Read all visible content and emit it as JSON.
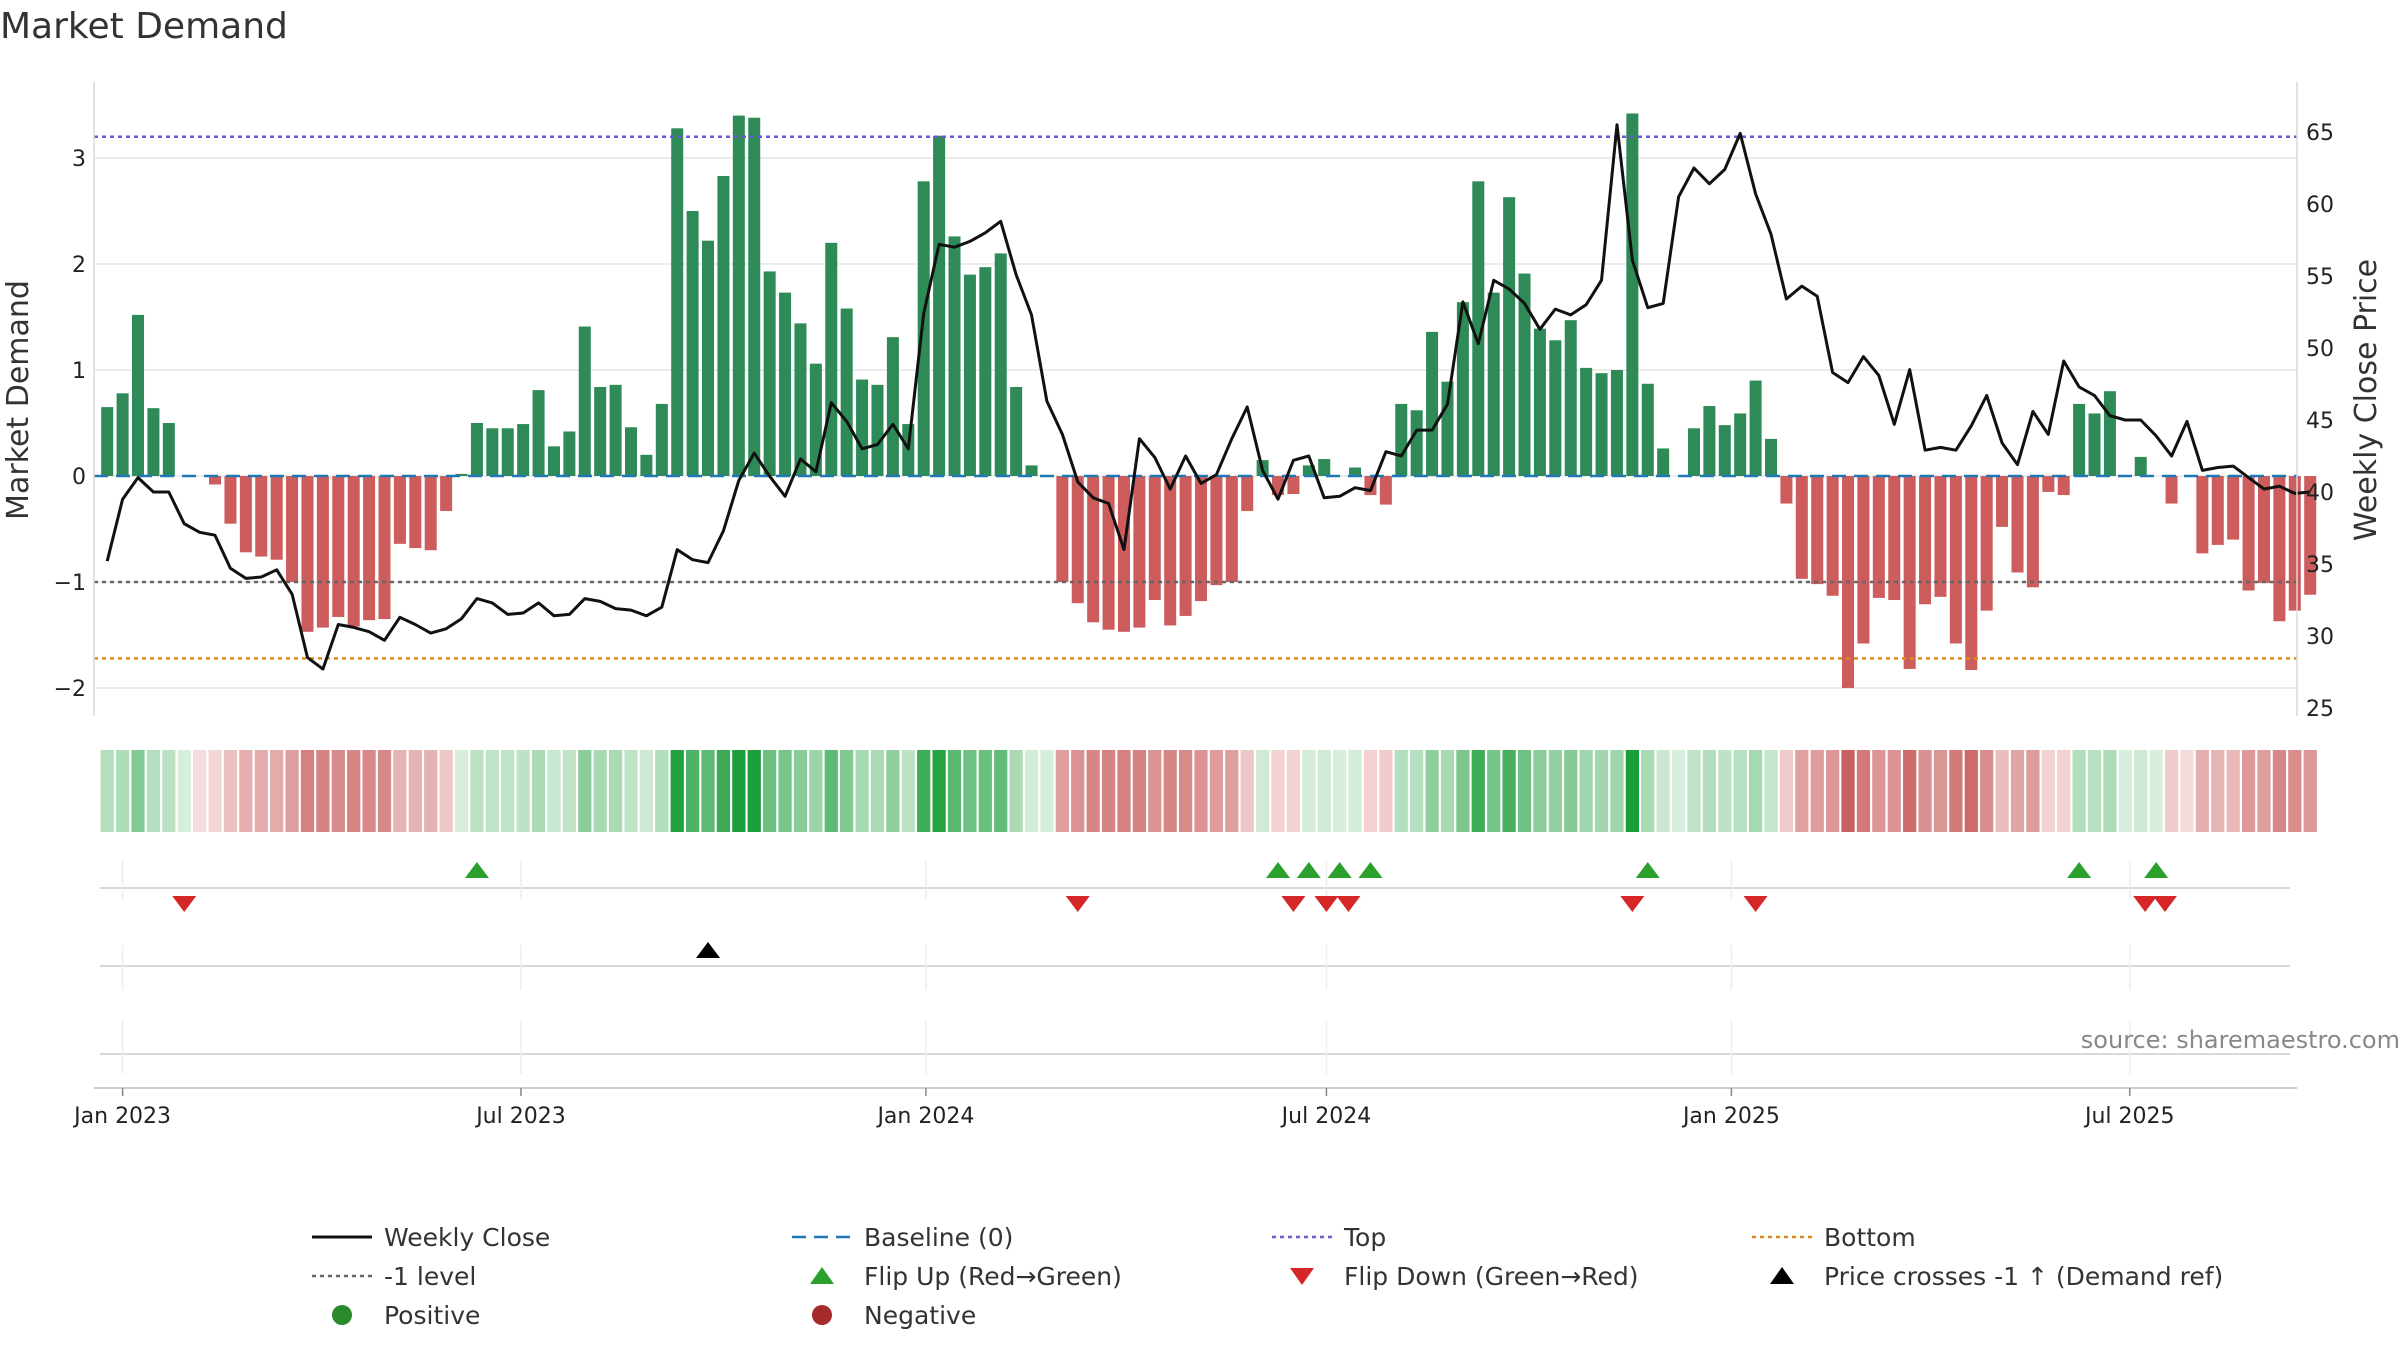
{
  "chart_data": {
    "type": "bar+line",
    "title": "Market Demand",
    "ylabel_left": "Market Demand",
    "ylabel_right": "Weekly Close Price",
    "ylim_left": [
      -2.4,
      3.75
    ],
    "ylim_right": [
      24,
      68
    ],
    "left_ticks": [
      -2,
      -1,
      0,
      1,
      2,
      3
    ],
    "left_tick_labels": [
      "−2",
      "−1",
      "0",
      "1",
      "2",
      "3"
    ],
    "right_ticks": [
      25,
      30,
      35,
      40,
      45,
      50,
      55,
      60,
      65
    ],
    "right_tick_labels": [
      "25",
      "30",
      "35",
      "40",
      "45",
      "50",
      "55",
      "60",
      "65"
    ],
    "x_start": "2022-12-19",
    "x_end": "2025-09-15",
    "x_ticks": [
      {
        "date": "2023-01-01",
        "label": "Jan 2023"
      },
      {
        "date": "2023-07-01",
        "label": "Jul 2023"
      },
      {
        "date": "2024-01-01",
        "label": "Jan 2024"
      },
      {
        "date": "2024-07-01",
        "label": "Jul 2024"
      },
      {
        "date": "2025-01-01",
        "label": "Jan 2025"
      },
      {
        "date": "2025-07-01",
        "label": "Jul 2025"
      }
    ],
    "first_week": "2022-12-25",
    "demand": [
      0.65,
      0.78,
      1.52,
      0.64,
      0.5,
      0.0,
      0.0,
      -0.08,
      -0.45,
      -0.72,
      -0.76,
      -0.79,
      -1.0,
      -1.47,
      -1.43,
      -1.33,
      -1.42,
      -1.36,
      -1.35,
      -0.64,
      -0.68,
      -0.7,
      -0.33,
      0.02,
      0.5,
      0.45,
      0.45,
      0.49,
      0.81,
      0.28,
      0.42,
      1.41,
      0.84,
      0.86,
      0.46,
      0.2,
      0.68,
      3.28,
      2.5,
      2.22,
      2.83,
      3.4,
      3.38,
      1.93,
      1.73,
      1.44,
      1.06,
      2.2,
      1.58,
      0.91,
      0.86,
      1.31,
      0.49,
      2.78,
      3.21,
      2.26,
      1.9,
      1.97,
      2.1,
      0.84,
      0.1,
      0.0,
      -1.0,
      -1.2,
      -1.38,
      -1.45,
      -1.47,
      -1.43,
      -1.17,
      -1.41,
      -1.32,
      -1.18,
      -1.03,
      -1.0,
      -0.33,
      0.15,
      -0.18,
      -0.17,
      0.1,
      0.16,
      0.0,
      0.08,
      -0.18,
      -0.27,
      0.68,
      0.62,
      1.36,
      0.89,
      1.64,
      2.78,
      1.73,
      2.63,
      1.91,
      1.39,
      1.28,
      1.47,
      1.02,
      0.97,
      1.0,
      3.42,
      0.87,
      0.26,
      0.0,
      0.45,
      0.66,
      0.48,
      0.59,
      0.9,
      0.35,
      -0.26,
      -0.97,
      -1.02,
      -1.13,
      -2.0,
      -1.58,
      -1.15,
      -1.17,
      -1.82,
      -1.21,
      -1.14,
      -1.58,
      -1.83,
      -1.27,
      -0.48,
      -0.91,
      -1.05,
      -0.15,
      -0.18,
      0.68,
      0.59,
      0.8,
      0.0,
      0.18,
      0.0,
      -0.26,
      0.0,
      -0.73,
      -0.65,
      -0.6,
      -1.08,
      -1.01,
      -1.37,
      -1.27,
      -1.12
    ],
    "price": [
      35.2,
      39.5,
      41.0,
      40.0,
      40.0,
      37.8,
      37.2,
      37.0,
      34.7,
      34.0,
      34.1,
      34.6,
      32.9,
      28.5,
      27.7,
      30.8,
      30.6,
      30.3,
      29.7,
      31.3,
      30.8,
      30.2,
      30.5,
      31.2,
      32.6,
      32.3,
      31.5,
      31.6,
      32.3,
      31.4,
      31.5,
      32.6,
      32.4,
      31.9,
      31.8,
      31.4,
      32.0,
      36.0,
      35.3,
      35.1,
      37.3,
      40.8,
      42.7,
      41.1,
      39.7,
      42.3,
      41.4,
      46.2,
      44.9,
      43.0,
      43.3,
      44.7,
      43.0,
      52.4,
      57.2,
      57.0,
      57.4,
      58.0,
      58.8,
      55.1,
      52.3,
      46.3,
      44.0,
      40.7,
      39.6,
      39.2,
      36.0,
      43.7,
      42.4,
      40.2,
      42.5,
      40.6,
      41.2,
      43.7,
      45.9,
      41.5,
      39.5,
      42.2,
      42.5,
      39.6,
      39.7,
      40.3,
      40.1,
      42.8,
      42.5,
      44.3,
      44.3,
      46.1,
      53.2,
      50.3,
      54.7,
      54.1,
      53.1,
      51.3,
      52.7,
      52.3,
      53.0,
      54.7,
      65.5,
      56.1,
      52.8,
      53.1,
      60.5,
      62.5,
      61.4,
      62.4,
      64.9,
      60.7,
      57.9,
      53.4,
      54.3,
      53.6,
      48.3,
      47.6,
      49.4,
      48.1,
      44.7,
      48.5,
      42.9,
      43.1,
      42.9,
      44.6,
      46.7,
      43.4,
      41.9,
      45.6,
      44.0,
      49.1,
      47.3,
      46.7,
      45.3,
      45.0,
      45.0,
      43.9,
      42.5,
      44.9,
      41.5,
      41.7,
      41.8,
      41.0,
      40.2,
      40.4,
      39.9,
      40.0
    ],
    "top_level": 3.2,
    "bottom_level": -1.72,
    "minus_one_level": -1,
    "baseline": 0,
    "colors": {
      "positive": "#2e8b57",
      "negative": "#cd5c5c",
      "line": "#111111",
      "baseline": "#1f77b4",
      "top": "#6a5acd",
      "bottom": "#e08a1e",
      "minus_one": "#666666",
      "flip_up": "#2ca02c",
      "flip_down": "#d62728",
      "cross": "#000000",
      "heat_pos_dark": "#1b9e3a",
      "heat_pos_light": "#d8eedd",
      "heat_neg_dark": "#c96060",
      "heat_neg_light": "#f5dcdc"
    },
    "flip_up_dates": [
      "2023-06-11",
      "2024-06-09",
      "2024-06-23",
      "2024-07-07",
      "2024-07-21",
      "2024-11-24",
      "2025-06-08",
      "2025-07-13"
    ],
    "flip_down_dates": [
      "2023-01-29",
      "2024-03-10",
      "2024-06-16",
      "2024-07-01",
      "2024-07-11",
      "2024-11-17",
      "2025-01-12",
      "2025-07-08",
      "2025-07-17"
    ],
    "cross_dates": [
      "2023-09-24"
    ],
    "legend": [
      {
        "label": "Weekly Close",
        "symbol": "line"
      },
      {
        "label": "Baseline (0)",
        "symbol": "dash-blue"
      },
      {
        "label": "Top",
        "symbol": "dot-purple"
      },
      {
        "label": "Bottom",
        "symbol": "dot-orange"
      },
      {
        "label": "-1 level",
        "symbol": "dot-gray"
      },
      {
        "label": "Flip Up (Red→Green)",
        "symbol": "tri-up-green"
      },
      {
        "label": "Flip Down (Green→Red)",
        "symbol": "tri-down-red"
      },
      {
        "label": "Price crosses -1 ↑ (Demand ref)",
        "symbol": "tri-up-black"
      },
      {
        "label": "Positive",
        "symbol": "circle-green"
      },
      {
        "label": "Negative",
        "symbol": "circle-red"
      }
    ],
    "source": "source: sharemaestro.com"
  }
}
